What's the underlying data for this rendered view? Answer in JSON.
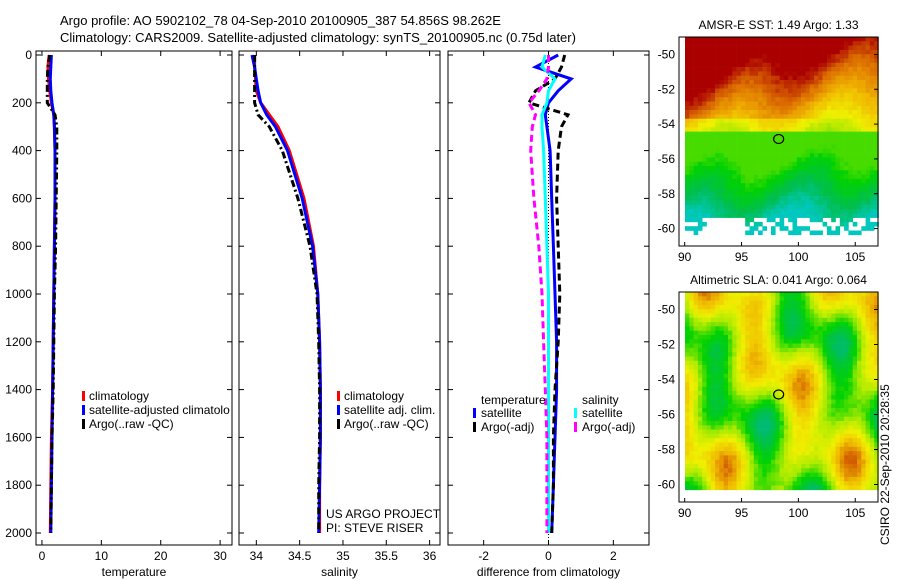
{
  "header": {
    "line1": "Argo profile: AO 5902102_78 04-Sep-2010 20100905_387 54.856S 98.262E",
    "line2": "Climatology: CARS2009. Satellite-adjusted climatology: synTS_20100905.nc (0.75d later)"
  },
  "credit": {
    "project": "US ARGO PROJECT",
    "pi": "PI: STEVE RISER",
    "stamp": "CSIRO 22-Sep-2010 20:28:35"
  },
  "colors": {
    "climatology": "#ff0000",
    "satellite": "#0000ff",
    "argo": "#000000",
    "sal_satellite": "#00ffff",
    "sal_argo": "#ff00ff"
  },
  "chart_data": [
    {
      "type": "line",
      "xlabel": "temperature",
      "ylim": [
        2050,
        0
      ],
      "xlim": [
        -1,
        32
      ],
      "xticks": [
        0,
        10,
        20,
        30
      ],
      "yticks": [
        0,
        200,
        400,
        600,
        800,
        1000,
        1200,
        1400,
        1600,
        1800,
        2000
      ],
      "depth": [
        0,
        50,
        100,
        150,
        200,
        250,
        300,
        400,
        600,
        800,
        1000,
        1200,
        1400,
        1600,
        1800,
        2000
      ],
      "legend_position": "middle-left",
      "series": [
        {
          "name": "climatology",
          "color": "#ff0000",
          "style": "solid",
          "values": [
            1.2,
            1.0,
            1.1,
            1.3,
            1.6,
            2.0,
            2.1,
            2.2,
            2.2,
            2.1,
            2.0,
            1.9,
            1.8,
            1.6,
            1.5,
            1.4
          ]
        },
        {
          "name": "satellite-adjusted climatolo",
          "color": "#0000ff",
          "style": "solid",
          "values": [
            1.6,
            1.5,
            1.4,
            1.5,
            1.7,
            2.0,
            2.1,
            2.2,
            2.2,
            2.1,
            2.0,
            1.9,
            1.8,
            1.7,
            1.6,
            1.5
          ]
        },
        {
          "name": "Argo(..raw -QC)",
          "color": "#000000",
          "style": "dashdot",
          "values": [
            1.3,
            1.0,
            0.9,
            0.9,
            0.9,
            2.2,
            2.5,
            2.5,
            2.4,
            2.3,
            2.1,
            2.0,
            1.9,
            1.7,
            1.6,
            1.5
          ]
        }
      ]
    },
    {
      "type": "line",
      "xlabel": "salinity",
      "ylim": [
        2050,
        0
      ],
      "xlim": [
        33.8,
        36.12
      ],
      "xticks": [
        34,
        34.5,
        35,
        35.5,
        36
      ],
      "depth": [
        0,
        50,
        100,
        150,
        200,
        250,
        300,
        400,
        600,
        800,
        1000,
        1200,
        1400,
        1600,
        1800,
        2000
      ],
      "legend_position": "middle-right",
      "series": [
        {
          "name": "climatology",
          "color": "#ff0000",
          "style": "solid",
          "values": [
            33.98,
            33.98,
            33.99,
            34.0,
            34.05,
            34.15,
            34.25,
            34.38,
            34.55,
            34.66,
            34.71,
            34.73,
            34.74,
            34.74,
            34.73,
            34.73
          ]
        },
        {
          "name": "satellite adj. clim.",
          "color": "#0000ff",
          "style": "solid",
          "values": [
            33.95,
            33.98,
            34.0,
            34.02,
            34.05,
            34.12,
            34.22,
            34.36,
            34.53,
            34.65,
            34.71,
            34.73,
            34.74,
            34.74,
            34.73,
            34.72
          ]
        },
        {
          "name": "Argo(..raw -QC)",
          "color": "#000000",
          "style": "dashdot",
          "values": [
            33.98,
            33.98,
            33.98,
            33.98,
            33.98,
            34.02,
            34.15,
            34.3,
            34.48,
            34.62,
            34.7,
            34.72,
            34.73,
            34.73,
            34.72,
            34.72
          ]
        }
      ]
    },
    {
      "type": "line",
      "xlabel": "difference from climatology",
      "ylim": [
        2050,
        0
      ],
      "xlim": [
        -3.1,
        3.1
      ],
      "xticks": [
        -2,
        0,
        2
      ],
      "depth": [
        0,
        50,
        100,
        150,
        200,
        250,
        300,
        400,
        600,
        800,
        1000,
        1200,
        1400,
        1600,
        1800,
        2000
      ],
      "legend_groups": [
        "temperature",
        "salinity"
      ],
      "series": [
        {
          "name": "satellite",
          "group": "temperature",
          "color": "#0000ff",
          "style": "solid",
          "values": [
            0.3,
            -0.4,
            0.7,
            0.3,
            0.0,
            -0.1,
            -0.05,
            0.05,
            0.1,
            0.15,
            0.2,
            0.25,
            0.25,
            0.2,
            0.15,
            0.1
          ]
        },
        {
          "name": "Argo(-adj)",
          "group": "temperature",
          "color": "#000000",
          "style": "dashed",
          "values": [
            0.5,
            0.4,
            0.2,
            -0.4,
            -0.6,
            0.6,
            0.4,
            0.3,
            0.25,
            0.3,
            0.35,
            0.3,
            0.2,
            0.15,
            0.15,
            0.1
          ]
        },
        {
          "name": "satellite",
          "group": "salinity",
          "color": "#00ffff",
          "style": "solid",
          "values": [
            -0.1,
            -0.2,
            0.2,
            0.0,
            -0.05,
            -0.2,
            -0.2,
            -0.15,
            -0.1,
            -0.05,
            0.0,
            0.0,
            0.0,
            0.0,
            0.0,
            0.0
          ]
        },
        {
          "name": "Argo(-adj)",
          "group": "salinity",
          "color": "#ff00ff",
          "style": "dashed",
          "values": [
            0,
            0,
            -0.05,
            -0.3,
            -0.6,
            -0.4,
            -0.5,
            -0.55,
            -0.45,
            -0.3,
            -0.2,
            -0.15,
            -0.1,
            -0.05,
            -0.05,
            -0.05
          ]
        }
      ]
    },
    {
      "type": "heatmap",
      "title": "AMSR-E SST: 1.49 Argo: 1.33",
      "xlim": [
        89.5,
        107
      ],
      "ylim": [
        -61,
        -49
      ],
      "xticks": [
        90,
        95,
        100,
        105
      ],
      "yticks": [
        -50,
        -52,
        -54,
        -56,
        -58,
        -60
      ],
      "marker": {
        "lon": 98.262,
        "lat": -54.856
      }
    },
    {
      "type": "heatmap",
      "title": "Altimetric SLA: 0.041 Argo: 0.064",
      "xlim": [
        89.5,
        107
      ],
      "ylim": [
        -61,
        -49
      ],
      "xticks": [
        90,
        95,
        100,
        105
      ],
      "yticks": [
        -50,
        -52,
        -54,
        -56,
        -58,
        -60
      ],
      "marker": {
        "lon": 98.262,
        "lat": -54.856
      }
    }
  ]
}
